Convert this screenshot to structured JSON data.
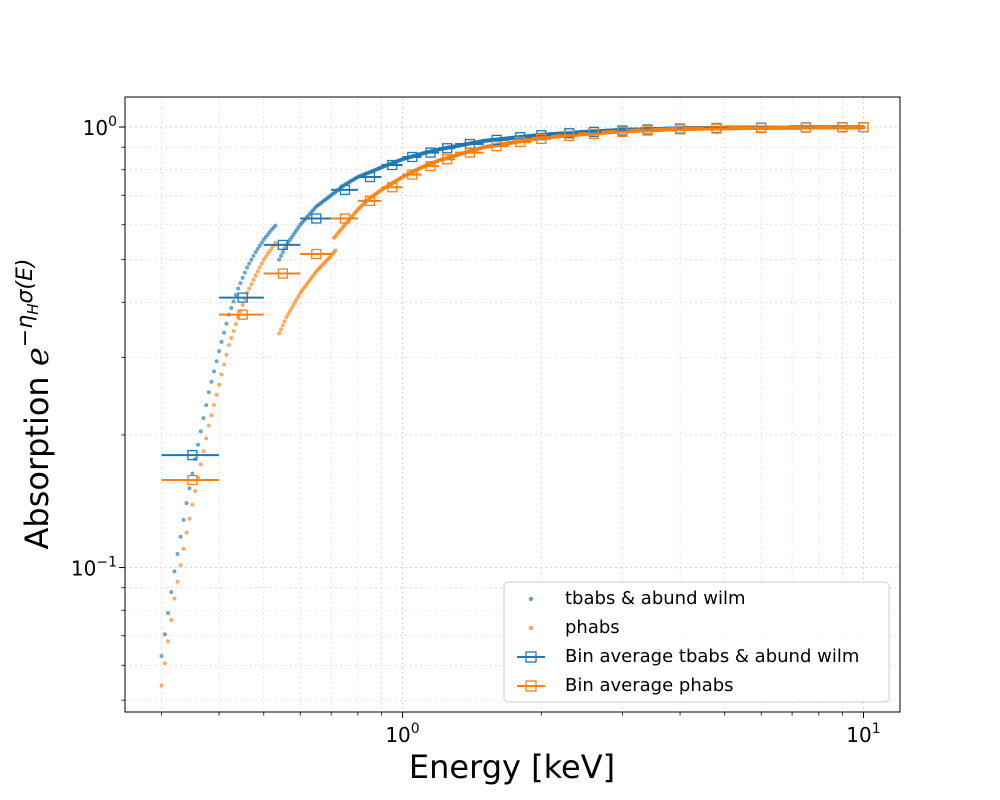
{
  "chart_data": {
    "type": "scatter",
    "xscale": "log",
    "yscale": "log",
    "xlim": [
      0.25,
      12
    ],
    "ylim": [
      0.047,
      1.17
    ],
    "grid": true,
    "legend_placement": "lower-right",
    "xlabel": "Energy [keV]",
    "ylabel": {
      "base": "Absorption ",
      "math_e": "e",
      "exp_minus": "−",
      "eta": "η",
      "eta_sub": "H",
      "sigma": "σ(E)"
    },
    "x_ticks": [
      {
        "value": 1,
        "base": "10",
        "exp": "0"
      },
      {
        "value": 10,
        "base": "10",
        "exp": "1"
      }
    ],
    "y_ticks": [
      {
        "value": 0.1,
        "base": "10",
        "exp": "−1"
      },
      {
        "value": 1,
        "base": "10",
        "exp": "0"
      }
    ],
    "colors": {
      "tbabs": "#1f77b4",
      "phabs": "#ff7f0e"
    },
    "series": [
      {
        "name": "tbabs & abund wilm",
        "kind": "points",
        "color": "#1f77b4",
        "segments": [
          {
            "x": [
              0.3,
              0.32,
              0.34,
              0.36,
              0.38,
              0.4,
              0.42,
              0.44,
              0.46,
              0.48,
              0.5,
              0.52,
              0.532
            ],
            "y": [
              0.063,
              0.098,
              0.14,
              0.19,
              0.25,
              0.31,
              0.375,
              0.43,
              0.48,
              0.52,
              0.555,
              0.585,
              0.6
            ]
          },
          {
            "x": [
              0.54,
              0.56,
              0.6,
              0.65,
              0.7,
              0.75,
              0.8,
              0.85,
              0.9,
              1.0,
              1.1,
              1.2,
              1.5,
              2,
              2.5,
              3,
              4,
              5,
              7,
              10
            ],
            "y": [
              0.5,
              0.54,
              0.6,
              0.66,
              0.7,
              0.74,
              0.77,
              0.79,
              0.81,
              0.845,
              0.87,
              0.89,
              0.93,
              0.96,
              0.975,
              0.985,
              0.993,
              0.996,
              0.998,
              0.999
            ]
          }
        ]
      },
      {
        "name": "phabs",
        "kind": "points",
        "color": "#ff7f0e",
        "segments": [
          {
            "x": [
              0.3,
              0.32,
              0.34,
              0.36,
              0.38,
              0.4,
              0.42,
              0.44,
              0.46,
              0.48,
              0.5,
              0.52,
              0.532
            ],
            "y": [
              0.054,
              0.085,
              0.12,
              0.16,
              0.21,
              0.26,
              0.32,
              0.37,
              0.42,
              0.46,
              0.5,
              0.53,
              0.55
            ]
          },
          {
            "x": [
              0.54,
              0.56,
              0.6,
              0.65,
              0.7,
              0.72
            ],
            "y": [
              0.34,
              0.37,
              0.42,
              0.47,
              0.51,
              0.53
            ]
          },
          {
            "x": [
              0.71,
              0.75,
              0.8,
              0.85,
              0.9,
              1.0,
              1.1,
              1.2,
              1.5,
              2,
              2.5,
              3,
              4,
              5,
              7,
              10
            ],
            "y": [
              0.56,
              0.6,
              0.65,
              0.69,
              0.72,
              0.77,
              0.81,
              0.84,
              0.9,
              0.945,
              0.965,
              0.978,
              0.99,
              0.994,
              0.997,
              0.999
            ]
          }
        ]
      },
      {
        "name": "Bin average tbabs & abund wilm",
        "kind": "bins",
        "color": "#1f77b4",
        "points": [
          {
            "x": 0.35,
            "y": 0.18,
            "xerr": [
              0.3,
              0.4
            ]
          },
          {
            "x": 0.45,
            "y": 0.41,
            "xerr": [
              0.4,
              0.5
            ]
          },
          {
            "x": 0.55,
            "y": 0.54,
            "xerr": [
              0.5,
              0.6
            ]
          },
          {
            "x": 0.65,
            "y": 0.62,
            "xerr": [
              0.6,
              0.7
            ]
          },
          {
            "x": 0.75,
            "y": 0.72,
            "xerr": [
              0.7,
              0.8
            ]
          },
          {
            "x": 0.85,
            "y": 0.77,
            "xerr": [
              0.8,
              0.9
            ]
          },
          {
            "x": 0.95,
            "y": 0.82,
            "xerr": [
              0.9,
              1.0
            ]
          },
          {
            "x": 1.05,
            "y": 0.855,
            "xerr": [
              1.0,
              1.1
            ]
          },
          {
            "x": 1.15,
            "y": 0.875,
            "xerr": [
              1.1,
              1.2
            ]
          },
          {
            "x": 1.25,
            "y": 0.895,
            "xerr": [
              1.2,
              1.3
            ]
          },
          {
            "x": 1.4,
            "y": 0.915,
            "xerr": [
              1.3,
              1.5
            ]
          },
          {
            "x": 1.6,
            "y": 0.935,
            "xerr": [
              1.5,
              1.7
            ]
          },
          {
            "x": 1.8,
            "y": 0.948,
            "xerr": [
              1.7,
              1.9
            ]
          },
          {
            "x": 2.0,
            "y": 0.958,
            "xerr": [
              1.9,
              2.1
            ]
          },
          {
            "x": 2.3,
            "y": 0.968,
            "xerr": [
              2.2,
              2.4
            ]
          },
          {
            "x": 2.6,
            "y": 0.975,
            "xerr": [
              2.5,
              2.7
            ]
          },
          {
            "x": 3.0,
            "y": 0.982,
            "xerr": [
              2.9,
              3.1
            ]
          },
          {
            "x": 3.4,
            "y": 0.987,
            "xerr": [
              3.3,
              3.5
            ]
          },
          {
            "x": 4.0,
            "y": 0.992,
            "xerr": [
              3.9,
              4.1
            ]
          },
          {
            "x": 4.8,
            "y": 0.995,
            "xerr": [
              4.5,
              5.1
            ]
          },
          {
            "x": 6.0,
            "y": 0.997,
            "xerr": [
              5.7,
              6.3
            ]
          },
          {
            "x": 7.5,
            "y": 0.998,
            "xerr": [
              7.2,
              7.8
            ]
          },
          {
            "x": 9.0,
            "y": 0.999,
            "xerr": [
              8.6,
              9.4
            ]
          },
          {
            "x": 10.0,
            "y": 0.999,
            "xerr": [
              9.8,
              10.0
            ]
          }
        ]
      },
      {
        "name": "Bin average phabs",
        "kind": "bins",
        "color": "#ff7f0e",
        "points": [
          {
            "x": 0.35,
            "y": 0.158,
            "xerr": [
              0.3,
              0.4
            ]
          },
          {
            "x": 0.45,
            "y": 0.375,
            "xerr": [
              0.4,
              0.5
            ]
          },
          {
            "x": 0.55,
            "y": 0.465,
            "xerr": [
              0.5,
              0.6
            ]
          },
          {
            "x": 0.65,
            "y": 0.515,
            "xerr": [
              0.6,
              0.7
            ]
          },
          {
            "x": 0.75,
            "y": 0.62,
            "xerr": [
              0.7,
              0.8
            ]
          },
          {
            "x": 0.85,
            "y": 0.68,
            "xerr": [
              0.8,
              0.9
            ]
          },
          {
            "x": 0.95,
            "y": 0.73,
            "xerr": [
              0.9,
              1.0
            ]
          },
          {
            "x": 1.05,
            "y": 0.78,
            "xerr": [
              1.0,
              1.1
            ]
          },
          {
            "x": 1.15,
            "y": 0.815,
            "xerr": [
              1.1,
              1.2
            ]
          },
          {
            "x": 1.25,
            "y": 0.845,
            "xerr": [
              1.2,
              1.3
            ]
          },
          {
            "x": 1.4,
            "y": 0.875,
            "xerr": [
              1.3,
              1.5
            ]
          },
          {
            "x": 1.6,
            "y": 0.905,
            "xerr": [
              1.5,
              1.7
            ]
          },
          {
            "x": 1.8,
            "y": 0.925,
            "xerr": [
              1.7,
              1.9
            ]
          },
          {
            "x": 2.0,
            "y": 0.94,
            "xerr": [
              1.9,
              2.1
            ]
          },
          {
            "x": 2.3,
            "y": 0.955,
            "xerr": [
              2.2,
              2.4
            ]
          },
          {
            "x": 2.6,
            "y": 0.965,
            "xerr": [
              2.5,
              2.7
            ]
          },
          {
            "x": 3.0,
            "y": 0.975,
            "xerr": [
              2.9,
              3.1
            ]
          },
          {
            "x": 3.4,
            "y": 0.982,
            "xerr": [
              3.3,
              3.5
            ]
          },
          {
            "x": 4.0,
            "y": 0.988,
            "xerr": [
              3.9,
              4.1
            ]
          },
          {
            "x": 4.8,
            "y": 0.992,
            "xerr": [
              4.5,
              5.1
            ]
          },
          {
            "x": 6.0,
            "y": 0.995,
            "xerr": [
              5.7,
              6.3
            ]
          },
          {
            "x": 7.5,
            "y": 0.997,
            "xerr": [
              7.2,
              7.8
            ]
          },
          {
            "x": 9.0,
            "y": 0.998,
            "xerr": [
              8.6,
              9.4
            ]
          },
          {
            "x": 10.0,
            "y": 0.999,
            "xerr": [
              9.8,
              10.0
            ]
          }
        ]
      }
    ]
  }
}
